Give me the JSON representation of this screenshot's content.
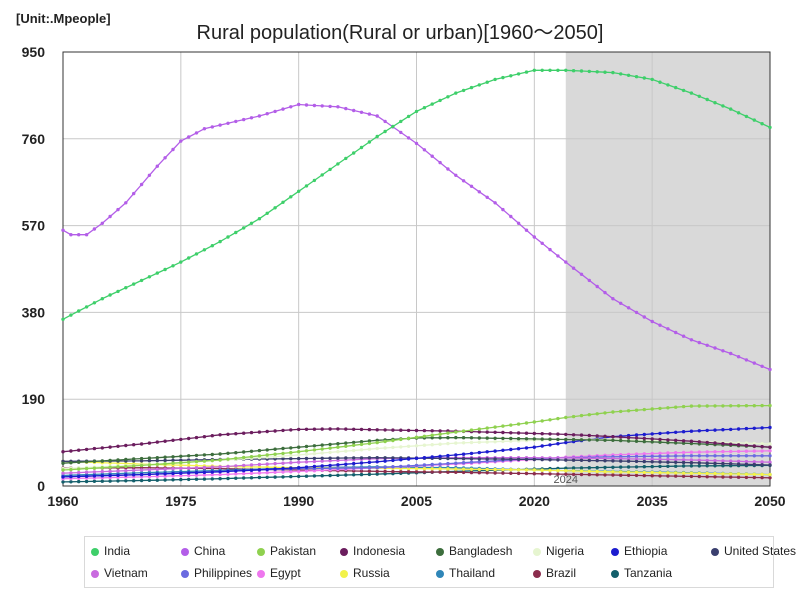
{
  "unit_label": "[Unit:.Mpeople]",
  "chart_data": {
    "type": "line",
    "title": "Rural population(Rural or urban)[1960～2050]",
    "xlabel": "",
    "ylabel": "",
    "xlim": [
      1960,
      2050
    ],
    "ylim": [
      0,
      950
    ],
    "x_ticks": [
      "1960",
      "1975",
      "1990",
      "2005",
      "2020",
      "2035",
      "2050"
    ],
    "y_ticks": [
      "0",
      "190",
      "380",
      "570",
      "760",
      "950"
    ],
    "grid": true,
    "legend_position": "bottom",
    "projection_start": 2024,
    "projection_label": "2024",
    "series": [
      {
        "name": "India",
        "color": "#3ecf6a",
        "points": [
          [
            1960,
            365
          ],
          [
            1965,
            410
          ],
          [
            1970,
            450
          ],
          [
            1975,
            490
          ],
          [
            1980,
            535
          ],
          [
            1985,
            585
          ],
          [
            1990,
            645
          ],
          [
            1995,
            705
          ],
          [
            2000,
            765
          ],
          [
            2005,
            820
          ],
          [
            2010,
            860
          ],
          [
            2015,
            890
          ],
          [
            2020,
            910
          ],
          [
            2024,
            910
          ],
          [
            2030,
            905
          ],
          [
            2035,
            890
          ],
          [
            2040,
            860
          ],
          [
            2045,
            825
          ],
          [
            2050,
            785
          ]
        ]
      },
      {
        "name": "China",
        "color": "#b35ee8",
        "points": [
          [
            1960,
            560
          ],
          [
            1961,
            550
          ],
          [
            1963,
            550
          ],
          [
            1965,
            575
          ],
          [
            1968,
            620
          ],
          [
            1970,
            660
          ],
          [
            1972,
            700
          ],
          [
            1975,
            755
          ],
          [
            1978,
            782
          ],
          [
            1980,
            790
          ],
          [
            1985,
            810
          ],
          [
            1990,
            835
          ],
          [
            1995,
            830
          ],
          [
            2000,
            810
          ],
          [
            2005,
            750
          ],
          [
            2010,
            680
          ],
          [
            2015,
            620
          ],
          [
            2020,
            545
          ],
          [
            2024,
            490
          ],
          [
            2030,
            410
          ],
          [
            2035,
            360
          ],
          [
            2040,
            320
          ],
          [
            2045,
            290
          ],
          [
            2050,
            255
          ]
        ]
      },
      {
        "name": "Pakistan",
        "color": "#8fd14f",
        "points": [
          [
            1960,
            35
          ],
          [
            1970,
            45
          ],
          [
            1980,
            57
          ],
          [
            1990,
            75
          ],
          [
            2000,
            95
          ],
          [
            2010,
            118
          ],
          [
            2020,
            140
          ],
          [
            2024,
            150
          ],
          [
            2030,
            162
          ],
          [
            2040,
            175
          ],
          [
            2050,
            176
          ]
        ]
      },
      {
        "name": "Indonesia",
        "color": "#6b1d5e",
        "points": [
          [
            1960,
            75
          ],
          [
            1970,
            92
          ],
          [
            1980,
            112
          ],
          [
            1990,
            124
          ],
          [
            1995,
            125
          ],
          [
            2000,
            123
          ],
          [
            2010,
            120
          ],
          [
            2020,
            115
          ],
          [
            2024,
            113
          ],
          [
            2030,
            108
          ],
          [
            2040,
            98
          ],
          [
            2050,
            85
          ]
        ]
      },
      {
        "name": "Bangladesh",
        "color": "#3d6e3d",
        "points": [
          [
            1960,
            50
          ],
          [
            1970,
            60
          ],
          [
            1980,
            70
          ],
          [
            1990,
            85
          ],
          [
            2000,
            100
          ],
          [
            2005,
            105
          ],
          [
            2010,
            106
          ],
          [
            2020,
            103
          ],
          [
            2030,
            100
          ],
          [
            2040,
            93
          ],
          [
            2050,
            85
          ]
        ]
      },
      {
        "name": "Nigeria",
        "color": "#e6f5d0",
        "points": [
          [
            1960,
            38
          ],
          [
            1970,
            46
          ],
          [
            1980,
            56
          ],
          [
            1990,
            68
          ],
          [
            2000,
            82
          ],
          [
            2010,
            94
          ],
          [
            2020,
            100
          ],
          [
            2024,
            102
          ],
          [
            2030,
            102
          ],
          [
            2040,
            98
          ],
          [
            2050,
            92
          ]
        ]
      },
      {
        "name": "Ethiopia",
        "color": "#1c1ccf",
        "points": [
          [
            1960,
            20
          ],
          [
            1970,
            25
          ],
          [
            1980,
            31
          ],
          [
            1990,
            40
          ],
          [
            2000,
            53
          ],
          [
            2010,
            68
          ],
          [
            2020,
            85
          ],
          [
            2024,
            95
          ],
          [
            2030,
            108
          ],
          [
            2040,
            120
          ],
          [
            2050,
            128
          ]
        ]
      },
      {
        "name": "United States",
        "color": "#3a3f6e",
        "points": [
          [
            1960,
            54
          ],
          [
            1970,
            55
          ],
          [
            1980,
            58
          ],
          [
            1990,
            60
          ],
          [
            2000,
            62
          ],
          [
            2010,
            60
          ],
          [
            2020,
            58
          ],
          [
            2030,
            55
          ],
          [
            2040,
            51
          ],
          [
            2050,
            46
          ]
        ]
      },
      {
        "name": "Vietnam",
        "color": "#c96adf",
        "points": [
          [
            1960,
            28
          ],
          [
            1970,
            35
          ],
          [
            1980,
            42
          ],
          [
            1990,
            52
          ],
          [
            2000,
            60
          ],
          [
            2010,
            62
          ],
          [
            2020,
            62
          ],
          [
            2030,
            60
          ],
          [
            2040,
            57
          ],
          [
            2050,
            52
          ]
        ]
      },
      {
        "name": "Philippines",
        "color": "#6a6ae0",
        "points": [
          [
            1960,
            20
          ],
          [
            1970,
            25
          ],
          [
            1980,
            32
          ],
          [
            1990,
            38
          ],
          [
            2000,
            40
          ],
          [
            2010,
            50
          ],
          [
            2020,
            60
          ],
          [
            2030,
            64
          ],
          [
            2040,
            66
          ],
          [
            2050,
            66
          ]
        ]
      },
      {
        "name": "Egypt",
        "color": "#ee77ee",
        "points": [
          [
            1960,
            16
          ],
          [
            1970,
            20
          ],
          [
            1980,
            25
          ],
          [
            1990,
            32
          ],
          [
            2000,
            40
          ],
          [
            2010,
            48
          ],
          [
            2020,
            58
          ],
          [
            2024,
            63
          ],
          [
            2030,
            68
          ],
          [
            2040,
            74
          ],
          [
            2050,
            77
          ]
        ]
      },
      {
        "name": "Russia",
        "color": "#f2f24a",
        "points": [
          [
            1960,
            54
          ],
          [
            1970,
            48
          ],
          [
            1980,
            43
          ],
          [
            1990,
            40
          ],
          [
            2000,
            39
          ],
          [
            2010,
            37
          ],
          [
            2020,
            35
          ],
          [
            2030,
            31
          ],
          [
            2040,
            28
          ],
          [
            2050,
            25
          ]
        ]
      },
      {
        "name": "Thailand",
        "color": "#2f86b8",
        "points": [
          [
            1960,
            23
          ],
          [
            1970,
            29
          ],
          [
            1980,
            34
          ],
          [
            1990,
            40
          ],
          [
            2000,
            42
          ],
          [
            2010,
            40
          ],
          [
            2020,
            35
          ],
          [
            2030,
            32
          ],
          [
            2040,
            29
          ],
          [
            2050,
            25
          ]
        ]
      },
      {
        "name": "Brazil",
        "color": "#8b2d4d",
        "points": [
          [
            1960,
            39
          ],
          [
            1970,
            40
          ],
          [
            1980,
            38
          ],
          [
            1990,
            35
          ],
          [
            2000,
            32
          ],
          [
            2010,
            30
          ],
          [
            2020,
            27
          ],
          [
            2030,
            24
          ],
          [
            2040,
            21
          ],
          [
            2050,
            18
          ]
        ]
      },
      {
        "name": "Tanzania",
        "color": "#135f6b",
        "points": [
          [
            1960,
            9
          ],
          [
            1970,
            12
          ],
          [
            1980,
            16
          ],
          [
            1990,
            21
          ],
          [
            2000,
            26
          ],
          [
            2010,
            32
          ],
          [
            2020,
            37
          ],
          [
            2024,
            39
          ],
          [
            2030,
            41
          ],
          [
            2040,
            44
          ],
          [
            2050,
            45
          ]
        ]
      }
    ]
  }
}
